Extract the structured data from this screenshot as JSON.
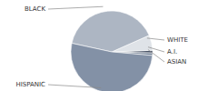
{
  "chart_data": {
    "type": "pie",
    "categories": [
      "ASIAN",
      "A.I.",
      "WHITE",
      "BLACK",
      "HISPANIC"
    ],
    "values": [
      1,
      1,
      6,
      40,
      52
    ],
    "colors": [
      "#6b7a8f",
      "#4a5568",
      "#dfe3e8",
      "#adb6c3",
      "#8391a6"
    ]
  }
}
